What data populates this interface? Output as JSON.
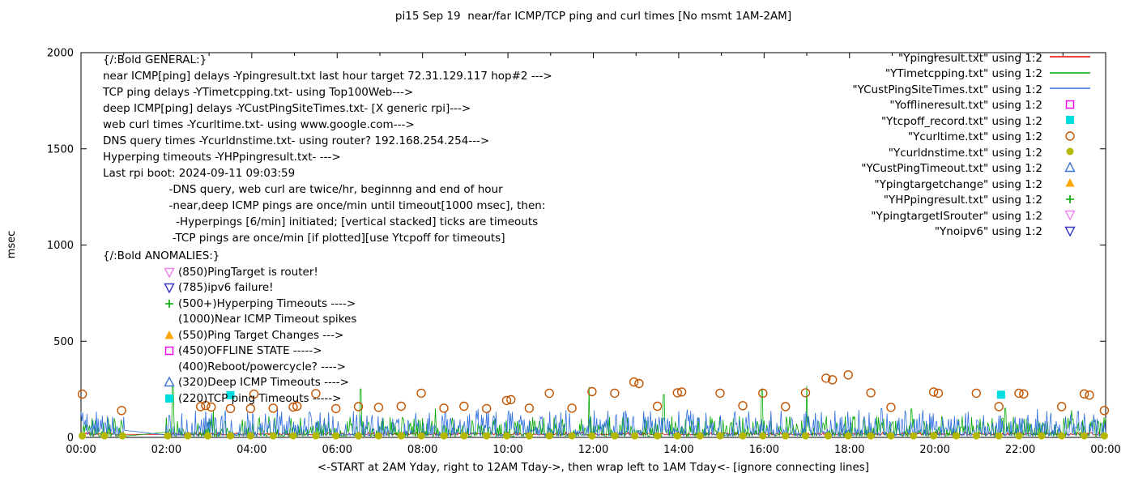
{
  "title": "pi15 Sep 19  near/far ICMP/TCP ping and curl times [No msmt 1AM-2AM]",
  "axes": {
    "ylabel": "msec",
    "xlabel": "<-START at 2AM Yday, right to 12AM Tday->, then wrap left to 1AM Tday<- [ignore connecting lines]",
    "y_ticks": [
      [
        0,
        "0"
      ],
      [
        500,
        "500"
      ],
      [
        1000,
        "1000"
      ],
      [
        1500,
        "1500"
      ],
      [
        2000,
        "2000"
      ]
    ],
    "x_ticks": [
      [
        0,
        "00:00"
      ],
      [
        2,
        "02:00"
      ],
      [
        4,
        "04:00"
      ],
      [
        6,
        "06:00"
      ],
      [
        8,
        "08:00"
      ],
      [
        10,
        "10:00"
      ],
      [
        12,
        "12:00"
      ],
      [
        14,
        "14:00"
      ],
      [
        16,
        "16:00"
      ],
      [
        18,
        "18:00"
      ],
      [
        20,
        "20:00"
      ],
      [
        22,
        "22:00"
      ],
      [
        24,
        "00:00"
      ]
    ],
    "ylim": [
      0,
      2000
    ],
    "xlim_hours": [
      0,
      24
    ]
  },
  "annotations": {
    "general": {
      "lines": [
        "{/:Bold GENERAL:}",
        "near ICMP[ping] delays -Ypingresult.txt last hour target 72.31.129.117 hop#2 --->",
        "TCP ping delays -YTimetcpping.txt- using Top100Web--->",
        "deep ICMP[ping] delays -YCustPingSiteTimes.txt- [X generic rpi]--->",
        "web curl times -Ycurltime.txt- using www.google.com--->",
        "DNS query times -Ycurldnstime.txt- using router? 192.168.254.254--->",
        "Hyperping timeouts -YHPpingresult.txt- --->",
        "Last rpi boot: 2024-09-11 09:03:59",
        "                   -DNS query, web curl are twice/hr, beginnng and end of hour",
        "                   -near,deep ICMP pings are once/min until timeout[1000 msec], then:",
        "                     -Hyperpings [6/min] initiated; [vertical stacked] ticks are timeouts",
        "                    -TCP pings are once/min [if plotted][use Ytcpoff for timeouts]"
      ]
    },
    "anomalies": {
      "heading": "{/:Bold ANOMALIES:}",
      "items": [
        {
          "marker": "triangle-down-open",
          "color": "#ee82ee",
          "text": "(850)PingTarget is router!"
        },
        {
          "marker": "triangle-down-open",
          "color": "#3333cc",
          "text": "(785)ipv6 failure!"
        },
        {
          "marker": "plus",
          "color": "#00a800",
          "text": "(500+)Hyperping Timeouts ---->"
        },
        {
          "marker": "none",
          "color": "",
          "text": "(1000)Near ICMP Timeout spikes"
        },
        {
          "marker": "triangle-up-filled",
          "color": "#ffa500",
          "text": "(550)Ping Target Changes --->"
        },
        {
          "marker": "square-open",
          "color": "#ff00ff",
          "text": "(450)OFFLINE STATE ----->"
        },
        {
          "marker": "none",
          "color": "",
          "text": "(400)Reboot/powercycle? ---->"
        },
        {
          "marker": "triangle-up-open",
          "color": "#3a75d4",
          "text": "(320)Deep ICMP Timeouts ---->"
        },
        {
          "marker": "square-filled",
          "color": "#00dde0",
          "text": "(220)TCP ping Timeouts ----->"
        }
      ]
    }
  },
  "legend": {
    "items": [
      {
        "label": "\"Ypingresult.txt\" using 1:2",
        "marker": "line",
        "color": "#e60000"
      },
      {
        "label": "\"YTimetcpping.txt\" using 1:2",
        "marker": "line",
        "color": "#00a800"
      },
      {
        "label": "\"YCustPingSiteTimes.txt\" using 1:2",
        "marker": "line",
        "color": "#2f6fde"
      },
      {
        "label": "\"Yofflineresult.txt\" using 1:2",
        "marker": "square-open",
        "color": "#ff00ff"
      },
      {
        "label": "\"Ytcpoff_record.txt\" using 1:2",
        "marker": "square-filled",
        "color": "#00dde0"
      },
      {
        "label": "\"Ycurltime.txt\" using 1:2",
        "marker": "circle-open",
        "color": "#c25400"
      },
      {
        "label": "\"Ycurldnstime.txt\" using 1:2",
        "marker": "circle-filled",
        "color": "#b5b800"
      },
      {
        "label": "\"YCustPingTimeout.txt\" using 1:2",
        "marker": "triangle-up-open",
        "color": "#3a75d4"
      },
      {
        "label": "\"Ypingtargetchange\" using 1:2",
        "marker": "triangle-up-filled",
        "color": "#ffa500"
      },
      {
        "label": "\"YHPpingresult.txt\" using 1:2",
        "marker": "plus",
        "color": "#00a800"
      },
      {
        "label": "\"YpingtargetISrouter\" using 1:2",
        "marker": "triangle-down-open",
        "color": "#ee82ee"
      },
      {
        "label": "\"Ynoipv6\" using 1:2",
        "marker": "triangle-down-open",
        "color": "#3333cc"
      }
    ]
  },
  "chart_data": {
    "type": "line",
    "title": "pi15 Sep 19  near/far ICMP/TCP ping and curl times [No msmt 1AM-2AM]",
    "xlabel": "<-START at 2AM Yday, right to 12AM Tday->, then wrap left to 1AM Tday<- [ignore connecting lines]",
    "ylabel": "msec",
    "x_unit": "hours_0_to_24",
    "xlim": [
      0,
      24
    ],
    "ylim": [
      0,
      2000
    ],
    "no_msmt_hours": [
      1,
      2
    ],
    "series": [
      {
        "name": "Ypingresult.txt",
        "type": "line",
        "color": "#e60000",
        "noise": {
          "base": 13,
          "jitter": 14,
          "pow": 2.0
        },
        "spikes": []
      },
      {
        "name": "YTimetcpping.txt",
        "type": "line",
        "color": "#00a800",
        "noise": {
          "base": 6,
          "jitter": 105,
          "pow": 2.6
        },
        "spikes": [
          [
            1.05,
            150
          ],
          [
            2.15,
            268
          ],
          [
            3.1,
            142
          ],
          [
            6.55,
            252
          ],
          [
            8.3,
            150
          ],
          [
            11.9,
            262
          ],
          [
            13.65,
            222
          ],
          [
            15.95,
            252
          ],
          [
            17.0,
            268
          ],
          [
            19.45,
            148
          ],
          [
            21.65,
            152
          ],
          [
            23.2,
            142
          ]
        ]
      },
      {
        "name": "YCustPingSiteTimes.txt",
        "type": "line",
        "color": "#2f6fde",
        "noise": {
          "base": 8,
          "jitter": 135,
          "pow": 2.5
        },
        "spikes": [
          [
            4.6,
            150
          ],
          [
            9.3,
            148
          ],
          [
            14.2,
            145
          ],
          [
            18.75,
            150
          ],
          [
            22.4,
            148
          ]
        ]
      },
      {
        "name": "Yofflineresult.txt",
        "type": "points",
        "marker": "square-open",
        "color": "#ff00ff",
        "points": []
      },
      {
        "name": "Ytcpoff_record.txt",
        "type": "points",
        "marker": "square-filled",
        "color": "#00dde0",
        "points": [
          [
            3.5,
            220
          ],
          [
            21.55,
            222
          ]
        ]
      },
      {
        "name": "Ycurltime.txt",
        "type": "points",
        "marker": "circle-open",
        "color": "#c25400",
        "points": [
          [
            0.03,
            225
          ],
          [
            0.95,
            140
          ],
          [
            2.8,
            160
          ],
          [
            2.92,
            166
          ],
          [
            3.05,
            158
          ],
          [
            3.5,
            150
          ],
          [
            3.97,
            150
          ],
          [
            4.05,
            225
          ],
          [
            4.5,
            152
          ],
          [
            4.97,
            158
          ],
          [
            5.06,
            162
          ],
          [
            5.5,
            228
          ],
          [
            5.97,
            150
          ],
          [
            6.5,
            160
          ],
          [
            6.97,
            156
          ],
          [
            7.5,
            162
          ],
          [
            7.97,
            230
          ],
          [
            8.5,
            152
          ],
          [
            8.97,
            162
          ],
          [
            9.5,
            150
          ],
          [
            9.97,
            192
          ],
          [
            10.07,
            196
          ],
          [
            10.5,
            152
          ],
          [
            10.97,
            230
          ],
          [
            11.5,
            152
          ],
          [
            11.97,
            238
          ],
          [
            12.5,
            230
          ],
          [
            12.95,
            288
          ],
          [
            13.07,
            280
          ],
          [
            13.5,
            162
          ],
          [
            13.97,
            232
          ],
          [
            14.07,
            236
          ],
          [
            14.97,
            230
          ],
          [
            15.5,
            165
          ],
          [
            15.97,
            230
          ],
          [
            16.5,
            160
          ],
          [
            16.97,
            232
          ],
          [
            17.45,
            308
          ],
          [
            17.6,
            300
          ],
          [
            17.97,
            325
          ],
          [
            18.5,
            232
          ],
          [
            18.97,
            156
          ],
          [
            19.97,
            236
          ],
          [
            20.08,
            230
          ],
          [
            20.97,
            230
          ],
          [
            21.5,
            160
          ],
          [
            21.97,
            230
          ],
          [
            22.08,
            226
          ],
          [
            22.97,
            160
          ],
          [
            23.5,
            226
          ],
          [
            23.62,
            220
          ],
          [
            23.97,
            140
          ]
        ]
      },
      {
        "name": "Ycurldnstime.txt",
        "type": "points",
        "marker": "circle-filled",
        "color": "#b5b800",
        "y_const": 8,
        "x_list": [
          0.03,
          0.55,
          0.97,
          2.03,
          2.5,
          2.97,
          3.5,
          3.97,
          4.5,
          4.97,
          5.5,
          5.97,
          6.5,
          6.97,
          7.5,
          7.97,
          8.5,
          8.97,
          9.5,
          9.97,
          10.5,
          10.97,
          11.5,
          11.97,
          12.5,
          12.97,
          13.5,
          13.97,
          14.5,
          14.97,
          15.5,
          15.97,
          16.5,
          16.97,
          17.5,
          17.97,
          18.5,
          18.97,
          19.5,
          19.97,
          20.5,
          20.97,
          21.5,
          21.97,
          22.5,
          22.97,
          23.5,
          23.97
        ]
      },
      {
        "name": "YCustPingTimeout.txt",
        "type": "points",
        "marker": "triangle-up-open",
        "color": "#3a75d4",
        "points": []
      },
      {
        "name": "Ypingtargetchange",
        "type": "points",
        "marker": "triangle-up-filled",
        "color": "#ffa500",
        "points": []
      },
      {
        "name": "YHPpingresult.txt",
        "type": "points",
        "marker": "plus",
        "color": "#00a800",
        "points": []
      },
      {
        "name": "YpingtargetISrouter",
        "type": "points",
        "marker": "triangle-down-open",
        "color": "#ee82ee",
        "points": []
      },
      {
        "name": "Ynoipv6",
        "type": "points",
        "marker": "triangle-down-open",
        "color": "#3333cc",
        "points": []
      }
    ]
  }
}
